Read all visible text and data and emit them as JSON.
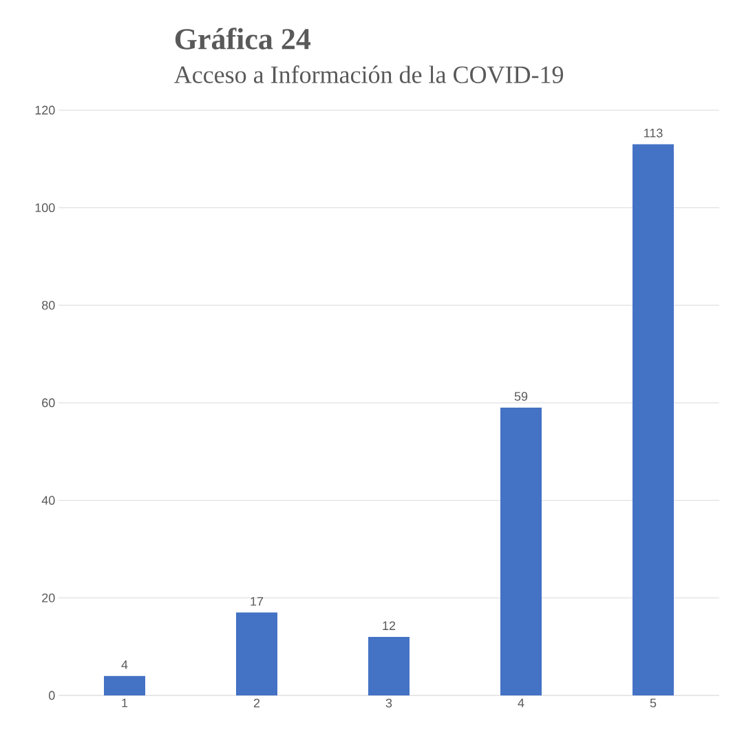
{
  "chart_data": {
    "type": "bar",
    "title": "Gráfica 24",
    "subtitle": "Acceso a Información de la COVID-19",
    "categories": [
      "1",
      "2",
      "3",
      "4",
      "5"
    ],
    "values": [
      4,
      17,
      12,
      59,
      113
    ],
    "color": "#4472c4",
    "ylim": [
      0,
      120
    ],
    "yticks": [
      0,
      20,
      40,
      60,
      80,
      100,
      120
    ],
    "grid": "y",
    "data_labels": true
  }
}
